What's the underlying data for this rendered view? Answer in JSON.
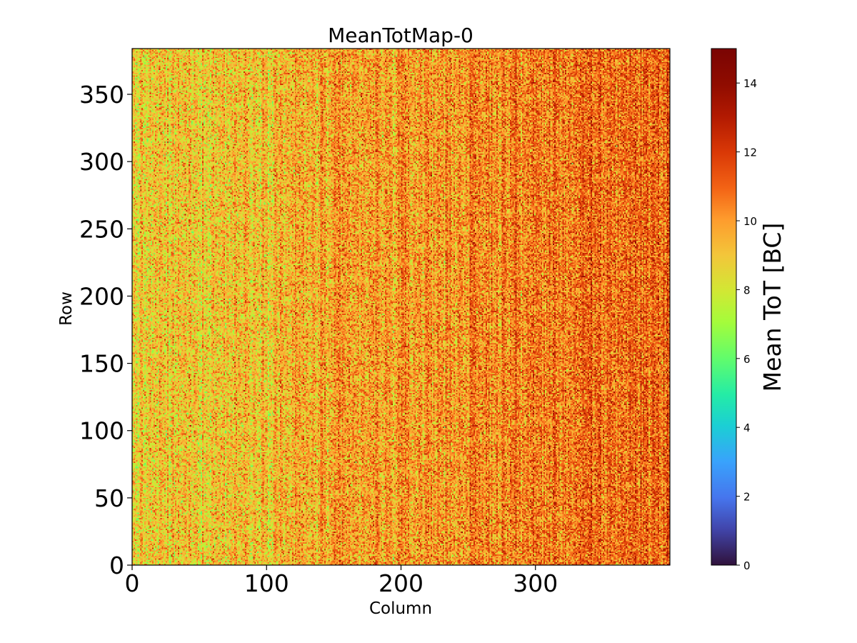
{
  "chart_data": {
    "type": "heatmap",
    "title": "MeanTotMap-0",
    "xlabel": "Column",
    "ylabel": "Row",
    "xlim": [
      0,
      400
    ],
    "ylim": [
      0,
      384
    ],
    "x_ticks": [
      0,
      100,
      200,
      300
    ],
    "y_ticks": [
      0,
      50,
      100,
      150,
      200,
      250,
      300,
      350
    ],
    "grid": false,
    "colorbar": {
      "label": "Mean ToT [BC]",
      "range": [
        0,
        15
      ],
      "ticks": [
        0,
        2,
        4,
        6,
        8,
        10,
        12,
        14
      ],
      "colormap": "turbo",
      "placement": "right"
    },
    "value_distribution": {
      "typical_min": 6,
      "typical_max": 15,
      "overall_mean": 10,
      "trend": "values increase from left (~9, greener) to right (~11.5, redder)",
      "pattern": "noisy pixel map with faint vertical column stripes"
    }
  }
}
